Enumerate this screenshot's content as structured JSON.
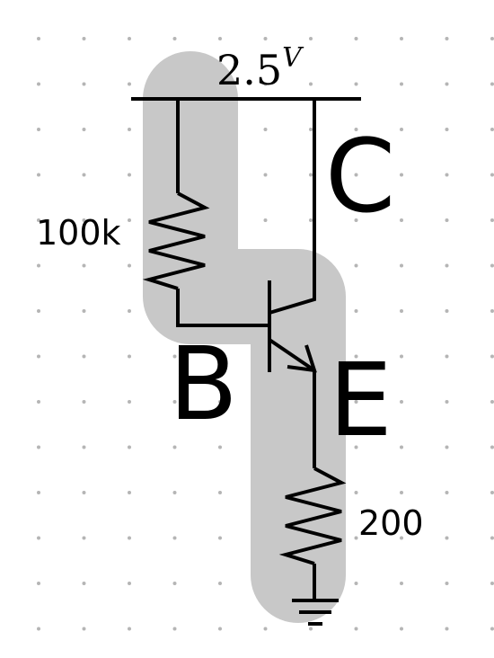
{
  "supply": {
    "value": "2.5",
    "unit": "V"
  },
  "resistors": {
    "base": {
      "label": "100k"
    },
    "emitter": {
      "label": "200"
    }
  },
  "terminals": {
    "collector": "C",
    "base": "B",
    "emitter": "E"
  },
  "colors": {
    "highlight": "#c8c8c8",
    "wire": "#000000",
    "grid_dot": "#b5b5b5",
    "background": "#ffffff"
  }
}
